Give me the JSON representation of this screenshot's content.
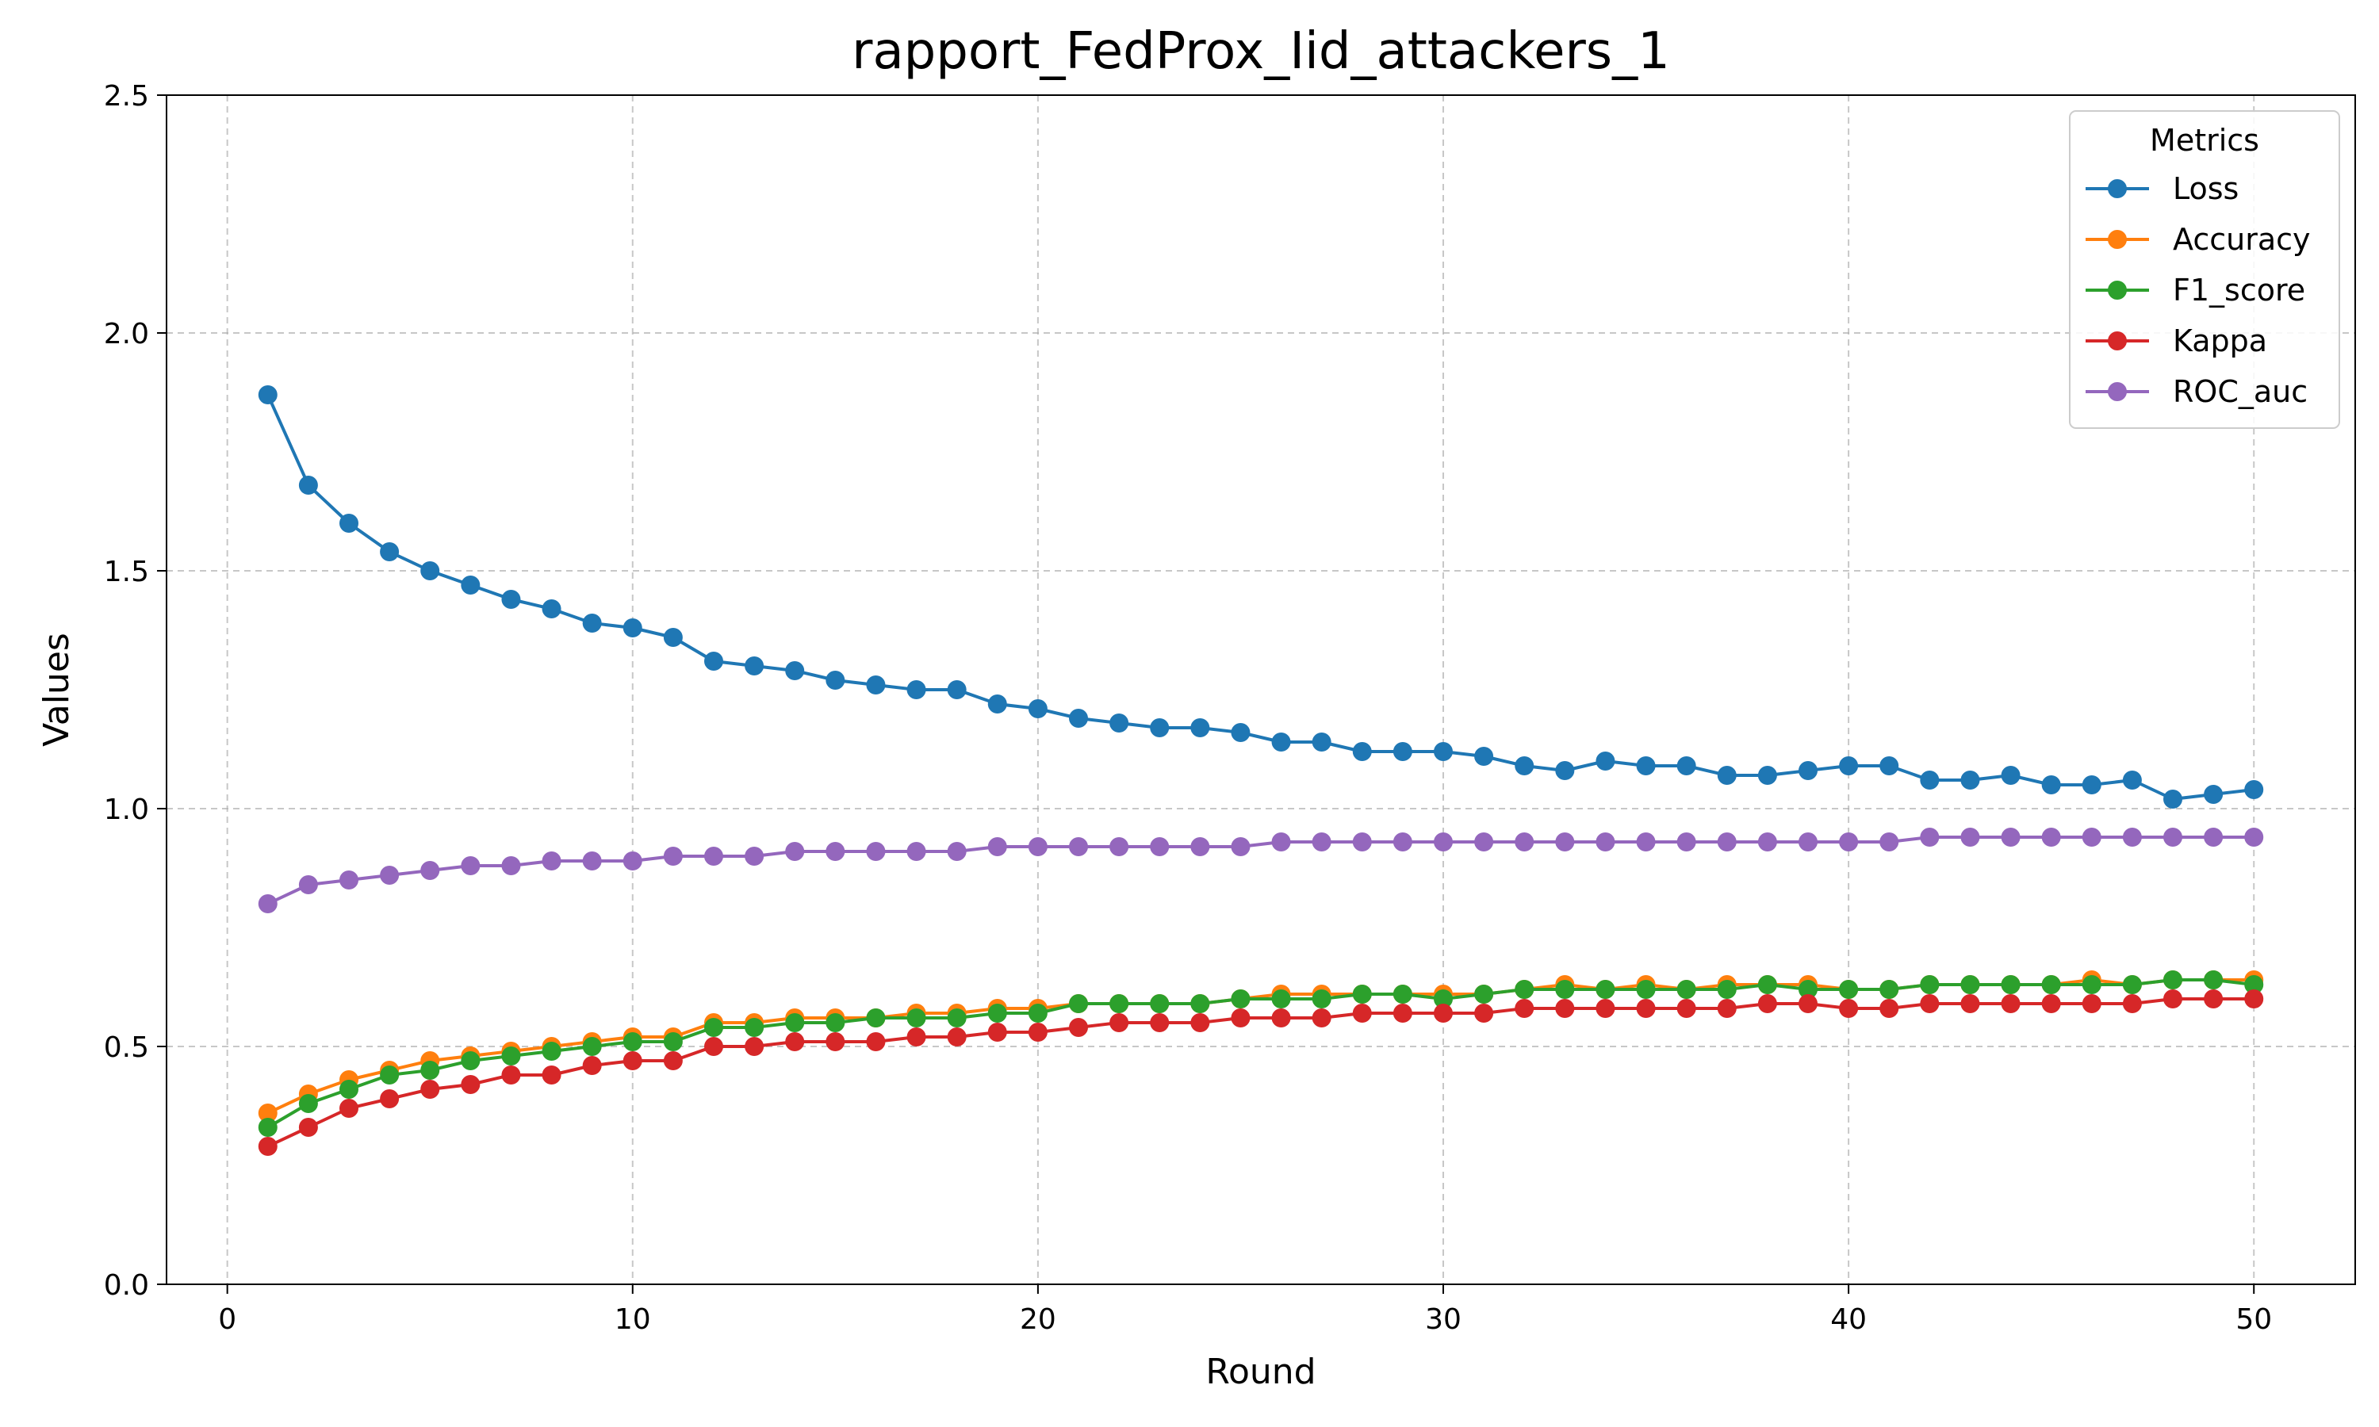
{
  "chart_data": {
    "type": "line",
    "title": "rapport_FedProx_Iid_attackers_1",
    "xlabel": "Round",
    "ylabel": "Values",
    "xlim": [
      -1.5,
      52.5
    ],
    "ylim": [
      0.0,
      2.5
    ],
    "xticks": [
      0,
      10,
      20,
      30,
      40,
      50
    ],
    "yticks": [
      0.0,
      0.5,
      1.0,
      1.5,
      2.0,
      2.5
    ],
    "xtick_labels": [
      "0",
      "10",
      "20",
      "30",
      "40",
      "50"
    ],
    "ytick_labels": [
      "0.0",
      "0.5",
      "1.0",
      "1.5",
      "2.0",
      "2.5"
    ],
    "grid": true,
    "legend": {
      "title": "Metrics",
      "placement": "top-right"
    },
    "x": [
      1,
      2,
      3,
      4,
      5,
      6,
      7,
      8,
      9,
      10,
      11,
      12,
      13,
      14,
      15,
      16,
      17,
      18,
      19,
      20,
      21,
      22,
      23,
      24,
      25,
      26,
      27,
      28,
      29,
      30,
      31,
      32,
      33,
      34,
      35,
      36,
      37,
      38,
      39,
      40,
      41,
      42,
      43,
      44,
      45,
      46,
      47,
      48,
      49,
      50
    ],
    "series": [
      {
        "name": "Loss",
        "color": "#1f77b4",
        "values": [
          1.87,
          1.68,
          1.6,
          1.54,
          1.5,
          1.47,
          1.44,
          1.42,
          1.39,
          1.38,
          1.36,
          1.31,
          1.3,
          1.29,
          1.27,
          1.26,
          1.25,
          1.25,
          1.22,
          1.21,
          1.19,
          1.18,
          1.17,
          1.17,
          1.16,
          1.14,
          1.14,
          1.12,
          1.12,
          1.12,
          1.11,
          1.09,
          1.08,
          1.1,
          1.09,
          1.09,
          1.07,
          1.07,
          1.08,
          1.09,
          1.09,
          1.06,
          1.06,
          1.07,
          1.05,
          1.05,
          1.06,
          1.02,
          1.03,
          1.04
        ]
      },
      {
        "name": "Accuracy",
        "color": "#ff7f0e",
        "values": [
          0.36,
          0.4,
          0.43,
          0.45,
          0.47,
          0.48,
          0.49,
          0.5,
          0.51,
          0.52,
          0.52,
          0.55,
          0.55,
          0.56,
          0.56,
          0.56,
          0.57,
          0.57,
          0.58,
          0.58,
          0.59,
          0.59,
          0.59,
          0.59,
          0.6,
          0.61,
          0.61,
          0.61,
          0.61,
          0.61,
          0.61,
          0.62,
          0.63,
          0.62,
          0.63,
          0.62,
          0.63,
          0.63,
          0.63,
          0.62,
          0.62,
          0.63,
          0.63,
          0.63,
          0.63,
          0.64,
          0.63,
          0.64,
          0.64,
          0.64
        ]
      },
      {
        "name": "F1_score",
        "color": "#2ca02c",
        "values": [
          0.33,
          0.38,
          0.41,
          0.44,
          0.45,
          0.47,
          0.48,
          0.49,
          0.5,
          0.51,
          0.51,
          0.54,
          0.54,
          0.55,
          0.55,
          0.56,
          0.56,
          0.56,
          0.57,
          0.57,
          0.59,
          0.59,
          0.59,
          0.59,
          0.6,
          0.6,
          0.6,
          0.61,
          0.61,
          0.6,
          0.61,
          0.62,
          0.62,
          0.62,
          0.62,
          0.62,
          0.62,
          0.63,
          0.62,
          0.62,
          0.62,
          0.63,
          0.63,
          0.63,
          0.63,
          0.63,
          0.63,
          0.64,
          0.64,
          0.63
        ]
      },
      {
        "name": "Kappa",
        "color": "#d62728",
        "values": [
          0.29,
          0.33,
          0.37,
          0.39,
          0.41,
          0.42,
          0.44,
          0.44,
          0.46,
          0.47,
          0.47,
          0.5,
          0.5,
          0.51,
          0.51,
          0.51,
          0.52,
          0.52,
          0.53,
          0.53,
          0.54,
          0.55,
          0.55,
          0.55,
          0.56,
          0.56,
          0.56,
          0.57,
          0.57,
          0.57,
          0.57,
          0.58,
          0.58,
          0.58,
          0.58,
          0.58,
          0.58,
          0.59,
          0.59,
          0.58,
          0.58,
          0.59,
          0.59,
          0.59,
          0.59,
          0.59,
          0.59,
          0.6,
          0.6,
          0.6
        ]
      },
      {
        "name": "ROC_auc",
        "color": "#9467bd",
        "values": [
          0.8,
          0.84,
          0.85,
          0.86,
          0.87,
          0.88,
          0.88,
          0.89,
          0.89,
          0.89,
          0.9,
          0.9,
          0.9,
          0.91,
          0.91,
          0.91,
          0.91,
          0.91,
          0.92,
          0.92,
          0.92,
          0.92,
          0.92,
          0.92,
          0.92,
          0.93,
          0.93,
          0.93,
          0.93,
          0.93,
          0.93,
          0.93,
          0.93,
          0.93,
          0.93,
          0.93,
          0.93,
          0.93,
          0.93,
          0.93,
          0.93,
          0.94,
          0.94,
          0.94,
          0.94,
          0.94,
          0.94,
          0.94,
          0.94,
          0.94
        ]
      }
    ]
  }
}
